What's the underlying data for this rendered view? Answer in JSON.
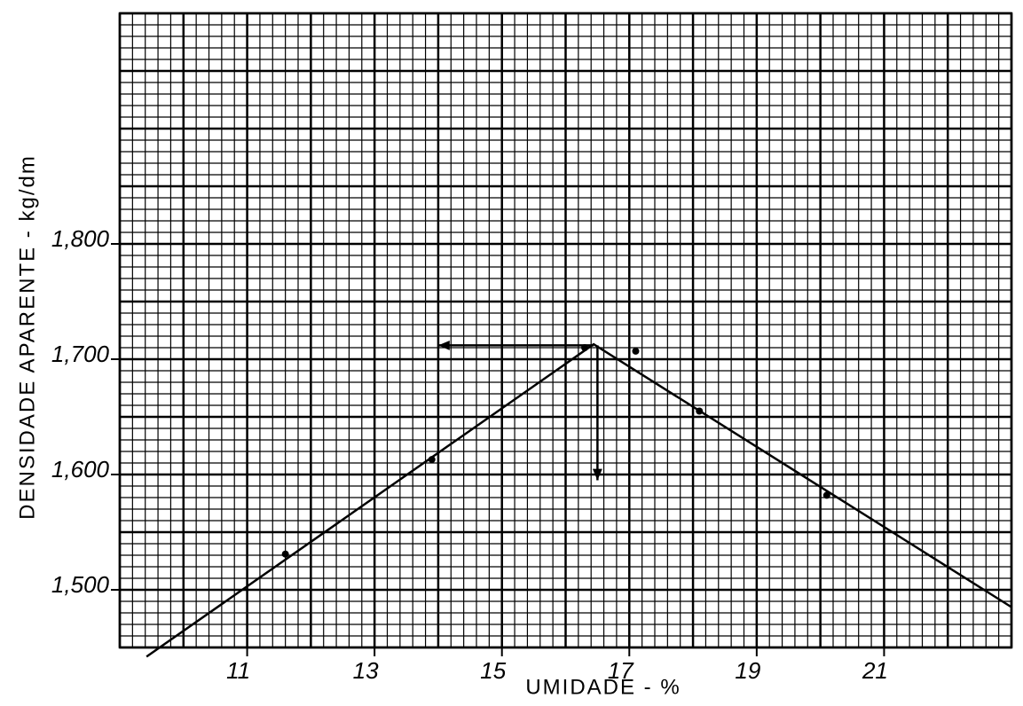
{
  "chart_data": {
    "type": "line",
    "x_label": "UMIDADE - %",
    "y_label": "DENSIDADE APARENTE - kg/dm",
    "xlim": [
      9,
      23
    ],
    "ylim": [
      1450,
      2000
    ],
    "xticks": [
      11,
      13,
      15,
      17,
      19,
      21
    ],
    "yticks": [
      {
        "value": 1500,
        "label": "1,500"
      },
      {
        "value": 1600,
        "label": "1,600"
      },
      {
        "value": 1700,
        "label": "1,700"
      },
      {
        "value": 1800,
        "label": "1,800"
      }
    ],
    "grid": {
      "minor_x": 0.2,
      "major_x": 1,
      "minor_y": 10,
      "major_y": 50
    },
    "color": "#000000",
    "points": {
      "x": [
        11.6,
        13.9,
        16.3,
        17.1,
        18.1,
        20.1
      ],
      "y": [
        1531,
        1613,
        1710,
        1707,
        1655,
        1582
      ]
    },
    "fit_line": {
      "x": [
        9.42,
        16.44,
        23
      ],
      "y": [
        1442,
        1713,
        1485
      ]
    },
    "arrows": [
      {
        "x": [
          16.44,
          14
        ],
        "y": [
          1712,
          1712
        ]
      },
      {
        "x": [
          16.5,
          16.5
        ],
        "y": [
          1712,
          1595
        ]
      }
    ]
  }
}
